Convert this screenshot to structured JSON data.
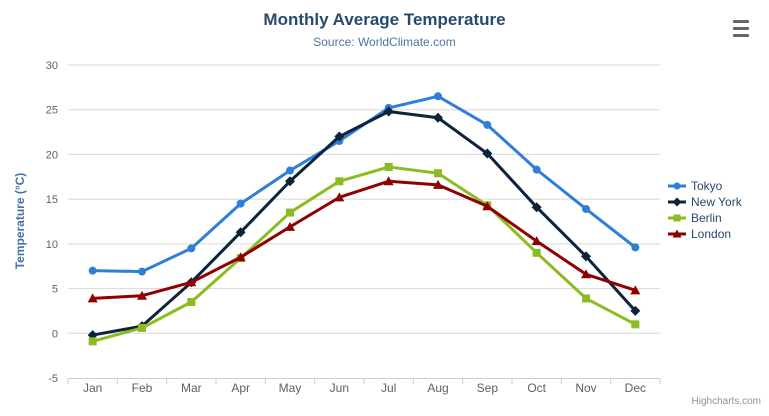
{
  "header": {
    "title": "Monthly Average Temperature",
    "subtitle": "Source: WorldClimate.com"
  },
  "credits": {
    "label": "Highcharts.com"
  },
  "icons": {
    "context_menu": "hamburger-menu-icon"
  },
  "colors": {
    "title": "#274b6d",
    "subtitle": "#4d759e",
    "legend_text": "#274b6d",
    "axis_label": "#606060",
    "axis_title": "#4572a7",
    "grid_line": "#d8d8d8",
    "axis_line": "#c0d0e0",
    "credits_text": "#909090",
    "menu_icon": "#666666"
  },
  "chart_data": {
    "type": "line",
    "title": "Monthly Average Temperature",
    "subtitle": "Source: WorldClimate.com",
    "xlabel": "",
    "ylabel": "Temperature (°C)",
    "categories": [
      "Jan",
      "Feb",
      "Mar",
      "Apr",
      "May",
      "Jun",
      "Jul",
      "Aug",
      "Sep",
      "Oct",
      "Nov",
      "Dec"
    ],
    "ylim": [
      -5,
      30
    ],
    "ytick_interval": 5,
    "grid": true,
    "legend_position": "right",
    "series": [
      {
        "name": "Tokyo",
        "color": "#2f7ed8",
        "marker": "circle",
        "values": [
          7.0,
          6.9,
          9.5,
          14.5,
          18.2,
          21.5,
          25.2,
          26.5,
          23.3,
          18.3,
          13.9,
          9.6
        ]
      },
      {
        "name": "New York",
        "color": "#0d233a",
        "marker": "diamond",
        "values": [
          -0.2,
          0.8,
          5.7,
          11.3,
          17.0,
          22.0,
          24.8,
          24.1,
          20.1,
          14.1,
          8.6,
          2.5
        ]
      },
      {
        "name": "Berlin",
        "color": "#8bbc21",
        "marker": "square",
        "values": [
          -0.9,
          0.6,
          3.5,
          8.4,
          13.5,
          17.0,
          18.6,
          17.9,
          14.3,
          9.0,
          3.9,
          1.0
        ]
      },
      {
        "name": "London",
        "color": "#910000",
        "marker": "triangle",
        "values": [
          3.9,
          4.2,
          5.7,
          8.5,
          11.9,
          15.2,
          17.0,
          16.6,
          14.2,
          10.3,
          6.6,
          4.8
        ]
      }
    ]
  }
}
